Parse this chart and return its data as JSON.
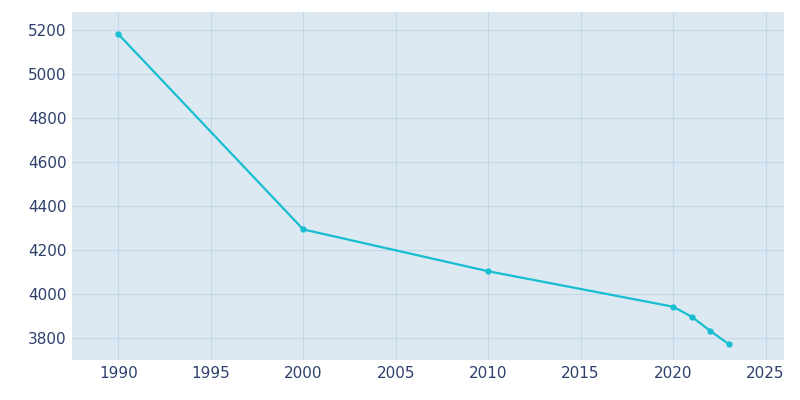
{
  "years": [
    1990,
    2000,
    2010,
    2020,
    2021,
    2022,
    2023
  ],
  "population": [
    5180,
    4293,
    4103,
    3942,
    3897,
    3833,
    3773
  ],
  "line_color": "#17becf",
  "marker_style": "o",
  "marker_size": 3.5,
  "line_width": 1.6,
  "fig_bg_color": "#ffffff",
  "plot_bg_color": "#dce9f3",
  "grid_color": "#c5d8ea",
  "tick_color": "#2d3f6b",
  "xlim": [
    1987.5,
    2026
  ],
  "ylim": [
    3700,
    5280
  ],
  "yticks": [
    3800,
    4000,
    4200,
    4400,
    4600,
    4800,
    5000,
    5200
  ],
  "xticks": [
    1990,
    1995,
    2000,
    2005,
    2010,
    2015,
    2020,
    2025
  ],
  "tick_fontsize": 11
}
